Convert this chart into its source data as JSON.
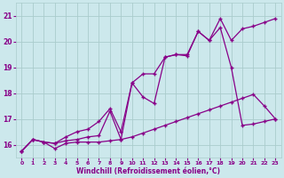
{
  "background_color": "#cce8ec",
  "grid_color": "#aacccc",
  "line_color": "#880088",
  "xlabel": "Windchill (Refroidissement éolien,°C)",
  "ylim": [
    15.5,
    21.5
  ],
  "xlim": [
    -0.5,
    23.5
  ],
  "yticks": [
    16,
    17,
    18,
    19,
    20,
    21
  ],
  "xticks": [
    0,
    1,
    2,
    3,
    4,
    5,
    6,
    7,
    8,
    9,
    10,
    11,
    12,
    13,
    14,
    15,
    16,
    17,
    18,
    19,
    20,
    21,
    22,
    23
  ],
  "line1_x": [
    0,
    1,
    2,
    3,
    4,
    5,
    6,
    7,
    8,
    9,
    10,
    11,
    12,
    13,
    14,
    15,
    16,
    17,
    18,
    19,
    20,
    21,
    22,
    23
  ],
  "line1_y": [
    15.75,
    16.2,
    16.1,
    15.85,
    16.05,
    16.1,
    16.1,
    16.1,
    16.15,
    16.2,
    16.3,
    16.45,
    16.6,
    16.75,
    16.9,
    17.05,
    17.2,
    17.35,
    17.5,
    17.65,
    17.8,
    17.95,
    17.5,
    17.0
  ],
  "line2_x": [
    0,
    1,
    2,
    3,
    4,
    5,
    6,
    7,
    8,
    9,
    10,
    11,
    12,
    13,
    14,
    15,
    16,
    17,
    18,
    19,
    20,
    21,
    22,
    23
  ],
  "line2_y": [
    15.75,
    16.2,
    16.1,
    16.05,
    16.15,
    16.2,
    16.3,
    16.35,
    17.3,
    16.2,
    18.4,
    17.85,
    17.6,
    19.4,
    19.5,
    19.45,
    20.4,
    20.05,
    20.55,
    19.0,
    16.75,
    16.8,
    16.9,
    17.0
  ],
  "line3_x": [
    0,
    1,
    2,
    3,
    4,
    5,
    6,
    7,
    8,
    9,
    10,
    11,
    12,
    13,
    14,
    15,
    16,
    17,
    18,
    19,
    20,
    21,
    22,
    23
  ],
  "line3_y": [
    15.75,
    16.2,
    16.1,
    16.05,
    16.3,
    16.5,
    16.6,
    16.9,
    17.4,
    16.5,
    18.4,
    18.75,
    18.75,
    19.4,
    19.5,
    19.5,
    20.4,
    20.05,
    20.9,
    20.05,
    20.5,
    20.6,
    20.75,
    20.9
  ],
  "line1_dash": false,
  "line2_dash": false,
  "line3_dash": false
}
